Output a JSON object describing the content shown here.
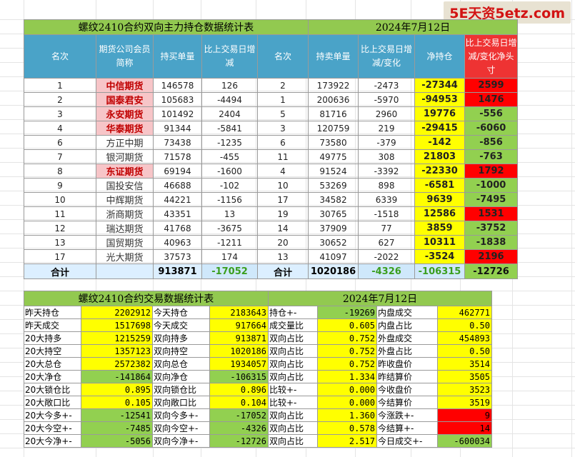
{
  "watermark": "5E天资5etz.com",
  "table1": {
    "title": "螺纹2410合约双向主力持仓数据统计表",
    "date": "2024年7月12日",
    "headers": [
      "名次",
      "期货公司会员简称",
      "持买单量",
      "比上交易日增减",
      "名次",
      "持卖单量",
      "比上交易日增减/变化",
      "净持仓",
      "比上交易日增减/变化净头寸"
    ],
    "rows": [
      {
        "rank_buy": "1",
        "broker": "中信期货",
        "pink": true,
        "buy": "146578",
        "buy_chg": "126",
        "rank_sell": "2",
        "sell": "173922",
        "sell_chg": "-2473",
        "net": "-27344",
        "net_sign": "neg",
        "net_bg": "y",
        "chg": "2599",
        "chg_bg": "r"
      },
      {
        "rank_buy": "2",
        "broker": "国泰君安",
        "pink": true,
        "buy": "105683",
        "buy_chg": "-4494",
        "rank_sell": "1",
        "sell": "200636",
        "sell_chg": "-5970",
        "net": "-94953",
        "net_sign": "neg",
        "net_bg": "y",
        "chg": "1476",
        "chg_bg": "r"
      },
      {
        "rank_buy": "3",
        "broker": "永安期货",
        "pink": true,
        "buy": "101492",
        "buy_chg": "2404",
        "rank_sell": "5",
        "sell": "81716",
        "sell_chg": "2960",
        "net": "19776",
        "net_sign": "pos",
        "net_bg": "y",
        "chg": "-556",
        "chg_bg": "g"
      },
      {
        "rank_buy": "4",
        "broker": "华泰期货",
        "pink": true,
        "buy": "91344",
        "buy_chg": "-5841",
        "rank_sell": "3",
        "sell": "120759",
        "sell_chg": "219",
        "net": "-29415",
        "net_sign": "neg",
        "net_bg": "y",
        "chg": "-6060",
        "chg_bg": "g"
      },
      {
        "rank_buy": "6",
        "broker": "方正中期",
        "pink": false,
        "buy": "73438",
        "buy_chg": "-1235",
        "rank_sell": "6",
        "sell": "73580",
        "sell_chg": "-379",
        "net": "-142",
        "net_sign": "neg",
        "net_bg": "y",
        "chg": "-856",
        "chg_bg": "g"
      },
      {
        "rank_buy": "7",
        "broker": "银河期货",
        "pink": false,
        "buy": "71578",
        "buy_chg": "-455",
        "rank_sell": "11",
        "sell": "49775",
        "sell_chg": "308",
        "net": "21803",
        "net_sign": "pos",
        "net_bg": "y",
        "chg": "-763",
        "chg_bg": "g"
      },
      {
        "rank_buy": "8",
        "broker": "东证期货",
        "pink": true,
        "buy": "69194",
        "buy_chg": "-1600",
        "rank_sell": "4",
        "sell": "91524",
        "sell_chg": "-3392",
        "net": "-22330",
        "net_sign": "neg",
        "net_bg": "y",
        "chg": "1792",
        "chg_bg": "r"
      },
      {
        "rank_buy": "9",
        "broker": "国投安信",
        "pink": false,
        "buy": "46688",
        "buy_chg": "-102",
        "rank_sell": "10",
        "sell": "53269",
        "sell_chg": "898",
        "net": "-6581",
        "net_sign": "neg",
        "net_bg": "y",
        "chg": "-1000",
        "chg_bg": "g"
      },
      {
        "rank_buy": "10",
        "broker": "中辉期货",
        "pink": false,
        "buy": "44221",
        "buy_chg": "-1156",
        "rank_sell": "17",
        "sell": "34582",
        "sell_chg": "6339",
        "net": "9639",
        "net_sign": "pos",
        "net_bg": "y",
        "chg": "-7495",
        "chg_bg": "g"
      },
      {
        "rank_buy": "11",
        "broker": "浙商期货",
        "pink": false,
        "buy": "43351",
        "buy_chg": "13",
        "rank_sell": "19",
        "sell": "30765",
        "sell_chg": "-1518",
        "net": "12586",
        "net_sign": "pos",
        "net_bg": "y",
        "chg": "1531",
        "chg_bg": "r"
      },
      {
        "rank_buy": "12",
        "broker": "瑞达期货",
        "pink": false,
        "buy": "41768",
        "buy_chg": "-3675",
        "rank_sell": "14",
        "sell": "37909",
        "sell_chg": "77",
        "net": "3859",
        "net_sign": "pos",
        "net_bg": "y",
        "chg": "-3752",
        "chg_bg": "g"
      },
      {
        "rank_buy": "13",
        "broker": "国贸期货",
        "pink": false,
        "buy": "40963",
        "buy_chg": "-1211",
        "rank_sell": "20",
        "sell": "30652",
        "sell_chg": "627",
        "net": "10311",
        "net_sign": "pos",
        "net_bg": "y",
        "chg": "-1838",
        "chg_bg": "g"
      },
      {
        "rank_buy": "17",
        "broker": "光大期货",
        "pink": false,
        "buy": "37573",
        "buy_chg": "174",
        "rank_sell": "13",
        "sell": "41097",
        "sell_chg": "-2022",
        "net": "-3524",
        "net_sign": "neg",
        "net_bg": "y",
        "chg": "2196",
        "chg_bg": "r"
      }
    ],
    "total": {
      "label1": "合计",
      "buy": "913871",
      "buy_chg": "-17052",
      "label2": "合计",
      "sell": "1020186",
      "sell_chg": "-4326",
      "net": "-106315",
      "chg": "-12726"
    }
  },
  "table2": {
    "title": "螺纹2410合约交易数据统计表",
    "date": "2024年7月12日",
    "rows": [
      [
        {
          "t": "昨天持仓"
        },
        {
          "t": "2202912",
          "c": "vy"
        },
        {
          "t": "今天持仓"
        },
        {
          "t": "2183643",
          "c": "vy"
        },
        {
          "t": "持仓+-"
        },
        {
          "t": "-19269",
          "c": "vg"
        },
        {
          "t": "内盘成交"
        },
        {
          "t": "462771",
          "c": "vy"
        }
      ],
      [
        {
          "t": "昨天成交"
        },
        {
          "t": "1517698",
          "c": "vy"
        },
        {
          "t": "今天成交"
        },
        {
          "t": "917664",
          "c": "vy"
        },
        {
          "t": "成交量比"
        },
        {
          "t": "0.605",
          "c": "vy"
        },
        {
          "t": "内盘占比"
        },
        {
          "t": "0.50",
          "c": "vy"
        }
      ],
      [
        {
          "t": "20大持多"
        },
        {
          "t": "1215259",
          "c": "vy"
        },
        {
          "t": "双向持多"
        },
        {
          "t": "913871",
          "c": "vy"
        },
        {
          "t": "双向占比"
        },
        {
          "t": "0.752",
          "c": "vy"
        },
        {
          "t": "外盘成交"
        },
        {
          "t": "454893",
          "c": "vy"
        }
      ],
      [
        {
          "t": "20大持空"
        },
        {
          "t": "1357123",
          "c": "vy"
        },
        {
          "t": "双向持空"
        },
        {
          "t": "1020186",
          "c": "vy"
        },
        {
          "t": "双向占比"
        },
        {
          "t": "0.752",
          "c": "vy"
        },
        {
          "t": "外盘占比"
        },
        {
          "t": "0.50",
          "c": "vy"
        }
      ],
      [
        {
          "t": "20大总仓"
        },
        {
          "t": "2572382",
          "c": "vy"
        },
        {
          "t": "双向总仓"
        },
        {
          "t": "1934057",
          "c": "vy"
        },
        {
          "t": "双向占比"
        },
        {
          "t": "0.752",
          "c": "vy"
        },
        {
          "t": "昨收盘价"
        },
        {
          "t": "3514",
          "c": "vy"
        }
      ],
      [
        {
          "t": "20大净仓"
        },
        {
          "t": "-141864",
          "c": "vg"
        },
        {
          "t": "双向净仓"
        },
        {
          "t": "-106315",
          "c": "vg"
        },
        {
          "t": "双向占比"
        },
        {
          "t": "1.334",
          "c": "vy"
        },
        {
          "t": "昨结算价"
        },
        {
          "t": "3505",
          "c": "vy"
        }
      ],
      [
        {
          "t": "20大锁仓比"
        },
        {
          "t": "0.895",
          "c": "vy"
        },
        {
          "t": "双向锁仓比"
        },
        {
          "t": "0.896",
          "c": "vy"
        },
        {
          "t": "比较+-"
        },
        {
          "t": "0.000",
          "c": "vy"
        },
        {
          "t": "今收盘价"
        },
        {
          "t": "3523",
          "c": "vy"
        }
      ],
      [
        {
          "t": "20大敞口比"
        },
        {
          "t": "0.105",
          "c": "vy"
        },
        {
          "t": "双向敞口比"
        },
        {
          "t": "0.104",
          "c": "vy"
        },
        {
          "t": "比较+-"
        },
        {
          "t": "0.000",
          "c": "vy"
        },
        {
          "t": "今结算价"
        },
        {
          "t": "3519",
          "c": "vy"
        }
      ],
      [
        {
          "t": "20大今多+-"
        },
        {
          "t": "-12541",
          "c": "vg"
        },
        {
          "t": "双向今多+-"
        },
        {
          "t": "-17052",
          "c": "vg"
        },
        {
          "t": "双向占比"
        },
        {
          "t": "1.360",
          "c": "vy"
        },
        {
          "t": "今涨跌+-"
        },
        {
          "t": "9",
          "c": "vr"
        }
      ],
      [
        {
          "t": "20大今空+-"
        },
        {
          "t": "-7485",
          "c": "vg"
        },
        {
          "t": "双向今空+-"
        },
        {
          "t": "-4326",
          "c": "vg"
        },
        {
          "t": "双向占比"
        },
        {
          "t": "0.578",
          "c": "vy"
        },
        {
          "t": "今结算+-"
        },
        {
          "t": "14",
          "c": "vr"
        }
      ],
      [
        {
          "t": "20大今净+-"
        },
        {
          "t": "-5056",
          "c": "vg"
        },
        {
          "t": "双向今净+-"
        },
        {
          "t": "-12726",
          "c": "vg"
        },
        {
          "t": "双向占比"
        },
        {
          "t": "2.517",
          "c": "vy"
        },
        {
          "t": "今日成交+-"
        },
        {
          "t": "-600034",
          "c": "vg"
        }
      ]
    ]
  }
}
